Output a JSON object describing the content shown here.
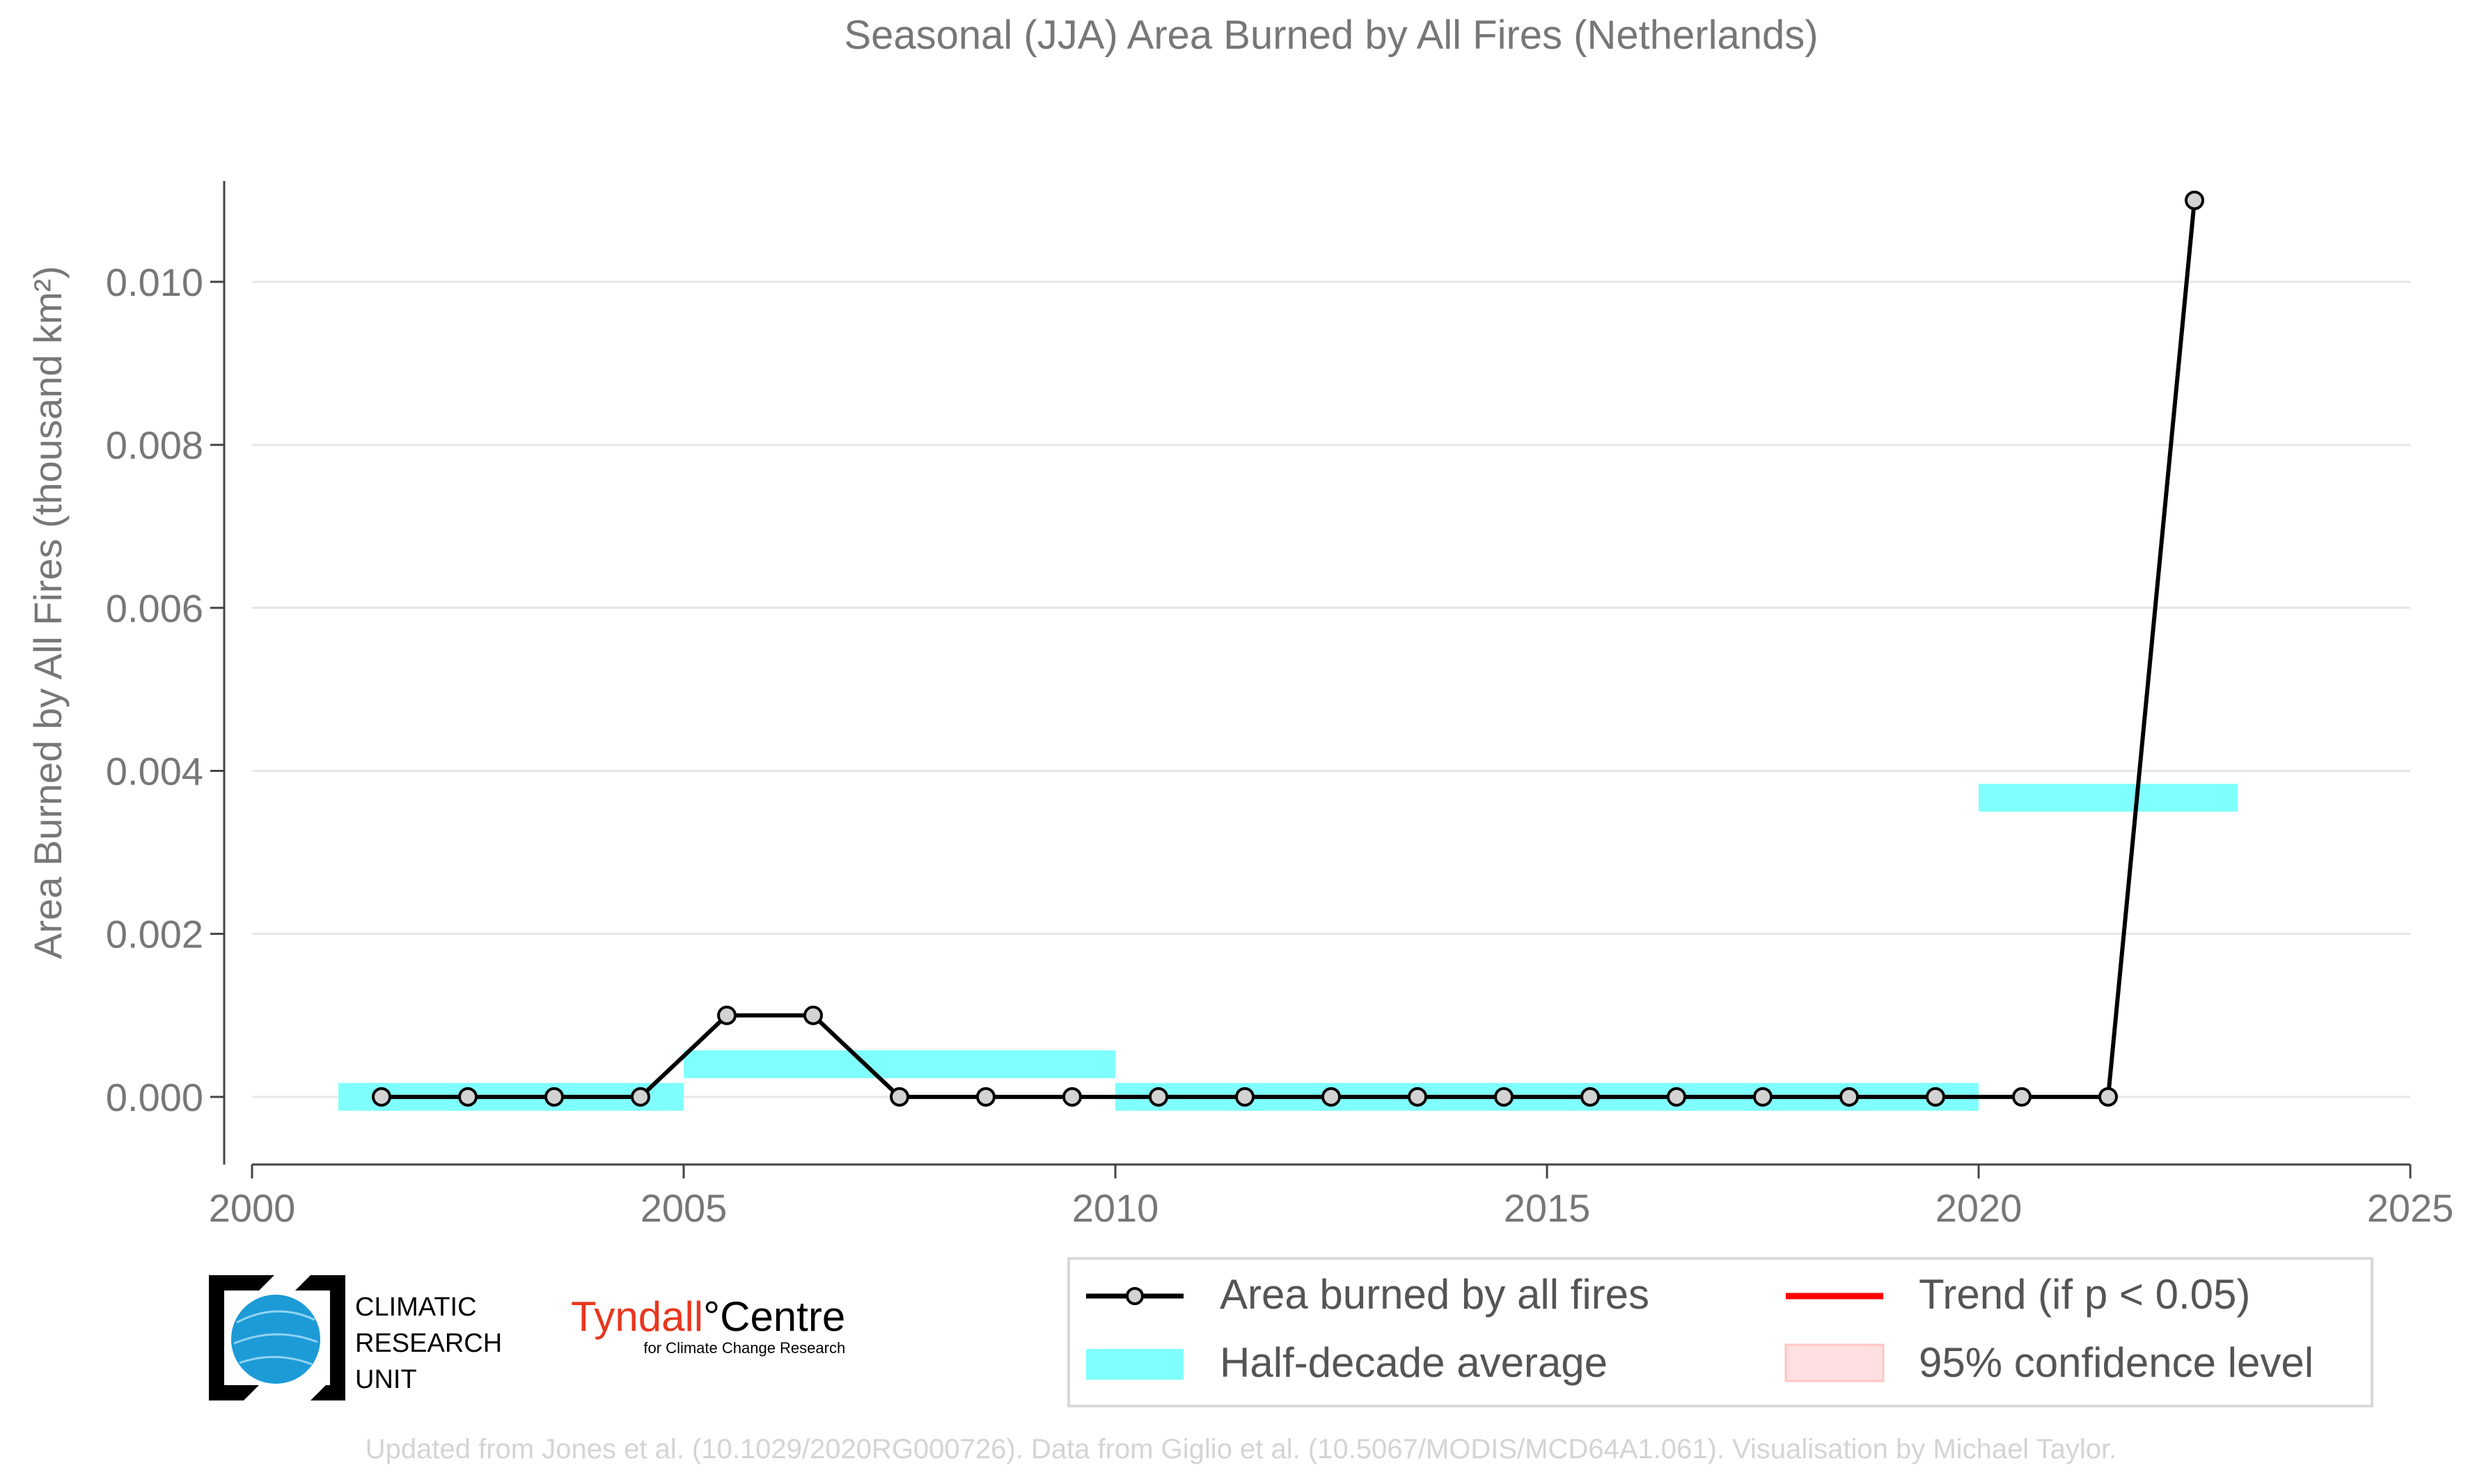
{
  "chart_data": {
    "type": "line",
    "title": "Seasonal (JJA) Area Burned by All Fires (Netherlands)",
    "ylabel": "Area Burned by All Fires (thousand km²)",
    "xlabel": "",
    "xlim": [
      2000,
      2025
    ],
    "ylim": [
      -0.00083,
      0.01175
    ],
    "x_ticks": [
      "2000",
      "2005",
      "2010",
      "2015",
      "2020",
      "2025"
    ],
    "y_ticks": [
      "0.000",
      "0.002",
      "0.004",
      "0.006",
      "0.008",
      "0.010"
    ],
    "grid": "horizontal",
    "series": [
      {
        "name": "Area burned by all fires",
        "color": "#000000",
        "x": [
          2001.5,
          2002.5,
          2003.5,
          2004.5,
          2005.5,
          2006.5,
          2007.5,
          2008.5,
          2009.5,
          2010.5,
          2011.5,
          2012.5,
          2013.5,
          2014.5,
          2015.5,
          2016.5,
          2017.5,
          2018.5,
          2019.5,
          2020.5,
          2021.5,
          2022.5
        ],
        "y": [
          0.0,
          0.0,
          0.0,
          0.0,
          0.001,
          0.001,
          0.0,
          0.0,
          0.0,
          0.0,
          0.0,
          0.0,
          0.0,
          0.0,
          0.0,
          0.0,
          0.0,
          0.0,
          0.0,
          0.0,
          0.0,
          0.011
        ]
      },
      {
        "name": "Half-decade average",
        "color": "#80ffff",
        "segments": [
          {
            "x0": 2001,
            "x1": 2005,
            "y": 0.0
          },
          {
            "x0": 2005,
            "x1": 2010,
            "y": 0.0004
          },
          {
            "x0": 2010,
            "x1": 2020,
            "y": 0.0
          },
          {
            "x0": 2020,
            "x1": 2023,
            "y": 0.00367
          }
        ]
      }
    ],
    "legend": {
      "placement": "bottom-right",
      "items": [
        {
          "label": "Area burned by all fires",
          "kind": "line-marker",
          "color": "#000000"
        },
        {
          "label": "Trend (if p < 0.05)",
          "kind": "line",
          "color": "#ff0000"
        },
        {
          "label": "Half-decade average",
          "kind": "band",
          "color": "#80ffff"
        },
        {
          "label": "95% confidence level",
          "kind": "patch",
          "color": "#ffdfdf"
        }
      ]
    }
  },
  "logos": {
    "cru": {
      "line1": "CLIMATIC",
      "line2": "RESEARCH",
      "line3": "UNIT"
    },
    "tyndall": {
      "name_part1": "Tyndall",
      "degree": "°",
      "name_part2": "Centre",
      "subtitle": "for Climate Change Research"
    }
  },
  "footer": "Updated from Jones et al. (10.1029/2020RG000726). Data from Giglio et al. (10.5067/MODIS/MCD64A1.061). Visualisation by Michael Taylor."
}
